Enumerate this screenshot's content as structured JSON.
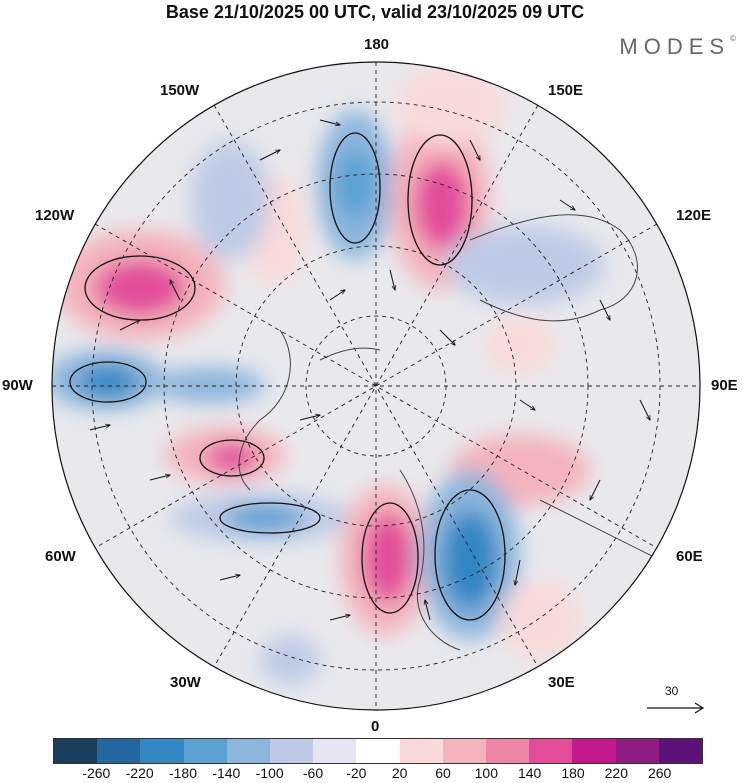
{
  "title": "Base 21/10/2025 00 UTC, valid 23/10/2025 09 UTC",
  "logo": "MODES",
  "logo_mark": "©",
  "longitude_labels": {
    "lon_180": "180",
    "lon_150e": "150E",
    "lon_120e": "120E",
    "lon_90e": "90E",
    "lon_60e": "60E",
    "lon_30e": "30E",
    "lon_0": "0",
    "lon_30w": "30W",
    "lon_60w": "60W",
    "lon_90w": "90W",
    "lon_120w": "120W",
    "lon_150w": "150W"
  },
  "vector_reference": {
    "value": "30"
  },
  "colorbar": {
    "colors": [
      "#1b3d5c",
      "#2466a0",
      "#3386c4",
      "#5aa1d2",
      "#8db6dd",
      "#bfcbe6",
      "#e6e4f1",
      "#ffffff",
      "#f9dada",
      "#f4b3bd",
      "#ee84a6",
      "#e24d9a",
      "#c4198c",
      "#921a83",
      "#5c1278"
    ],
    "ticks": [
      "-260",
      "-220",
      "-180",
      "-140",
      "-100",
      "-60",
      "-20",
      "20",
      "60",
      "100",
      "140",
      "180",
      "220",
      "260"
    ]
  },
  "color_roles": {
    "background": "#ffffff",
    "map_neutral": "#eaeaea",
    "coastline": "#444444",
    "grid": "#222222"
  }
}
